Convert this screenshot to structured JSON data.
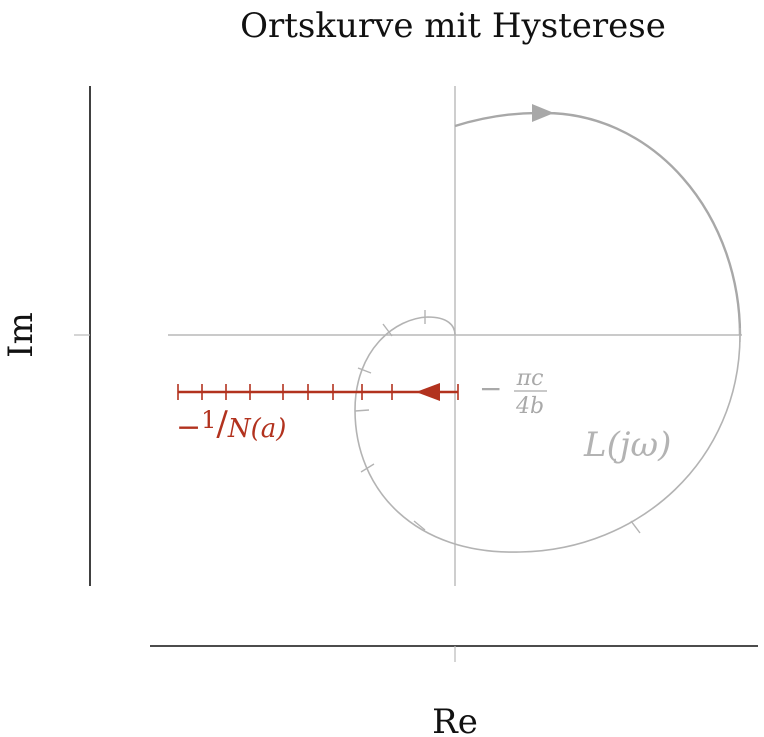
{
  "title": "Ortskurve mit Hysterese",
  "axes": {
    "x_label": "Re",
    "y_label": "Im"
  },
  "curve": {
    "label_prefix": "L(",
    "label_j": "j",
    "label_omega": "ω",
    "label_suffix": ")",
    "color": "#b0b0b0"
  },
  "describing_function": {
    "label_minus": "−",
    "label_one": "1",
    "label_slash": "/",
    "label_rest": "N(a)",
    "color": "#b2321e"
  },
  "intersection": {
    "minus": "−",
    "numerator": "πc",
    "denominator": "4b",
    "color": "#a9a9a9"
  },
  "colors": {
    "axis": "#111111",
    "grid": "#b9b9b9"
  }
}
